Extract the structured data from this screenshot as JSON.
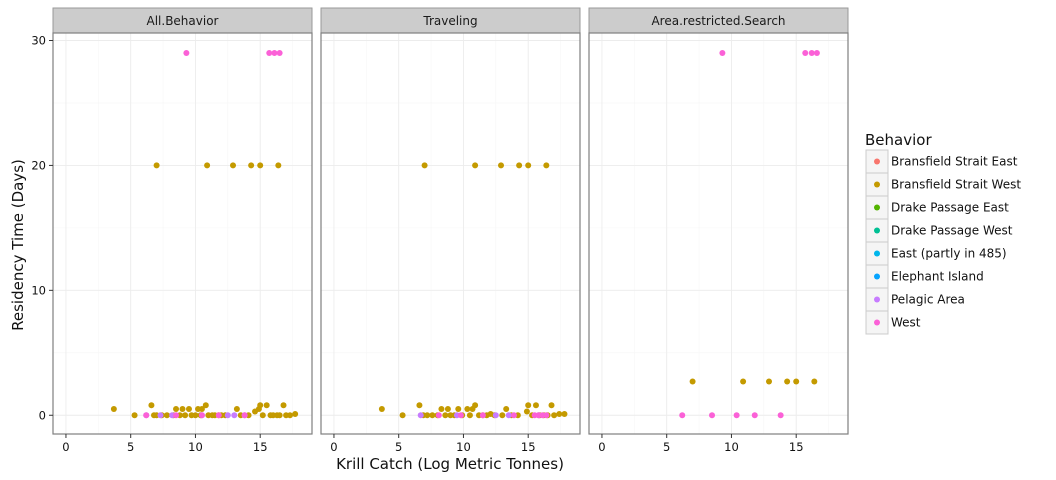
{
  "chart_data": {
    "type": "scatter",
    "xlabel": "Krill Catch (Log Metric Tonnes)",
    "ylabel": "Residency Time (Days)",
    "xlim": [
      -1,
      19
    ],
    "ylim": [
      -1.5,
      30.6
    ],
    "x_ticks": [
      "0",
      "5",
      "10",
      "15"
    ],
    "y_ticks": [
      "0",
      "10",
      "20",
      "30"
    ],
    "grid": true,
    "legend": {
      "title": "Behavior",
      "position": "right",
      "entries": [
        {
          "name": "Bransfield Strait East",
          "color": "#F8766D"
        },
        {
          "name": "Bransfield Strait West",
          "color": "#C49A00"
        },
        {
          "name": "Drake Passage East",
          "color": "#53B400"
        },
        {
          "name": "Drake Passage West",
          "color": "#00C094"
        },
        {
          "name": "East (partly in 485)",
          "color": "#00B6EB"
        },
        {
          "name": "Elephant Island",
          "color": "#06A4FF"
        },
        {
          "name": "Pelagic Area",
          "color": "#C77CFF"
        },
        {
          "name": "West",
          "color": "#FB61D7"
        }
      ]
    },
    "panels": [
      {
        "title": "All.Behavior",
        "series": [
          {
            "name": "Bransfield Strait West",
            "points": [
              [
                3.7,
                0.5
              ],
              [
                5.3,
                0
              ],
              [
                6.6,
                0.8
              ],
              [
                6.8,
                0
              ],
              [
                7.0,
                0
              ],
              [
                7.4,
                0
              ],
              [
                7.8,
                0
              ],
              [
                8.3,
                0
              ],
              [
                8.5,
                0.5
              ],
              [
                8.8,
                0
              ],
              [
                9.0,
                0.5
              ],
              [
                9.2,
                0
              ],
              [
                9.5,
                0.5
              ],
              [
                9.7,
                0
              ],
              [
                10.0,
                0
              ],
              [
                10.2,
                0.5
              ],
              [
                10.4,
                0
              ],
              [
                10.5,
                0.5
              ],
              [
                10.8,
                0.8
              ],
              [
                11.0,
                0
              ],
              [
                11.3,
                0
              ],
              [
                11.5,
                0
              ],
              [
                11.8,
                0
              ],
              [
                12.0,
                0
              ],
              [
                12.3,
                0
              ],
              [
                13.2,
                0.5
              ],
              [
                13.5,
                0
              ],
              [
                14.1,
                0
              ],
              [
                14.6,
                0.3
              ],
              [
                14.9,
                0.5
              ],
              [
                15.0,
                0.8
              ],
              [
                15.2,
                0
              ],
              [
                15.5,
                0.8
              ],
              [
                15.8,
                0
              ],
              [
                16.0,
                0
              ],
              [
                16.3,
                0
              ],
              [
                16.5,
                0
              ],
              [
                16.8,
                0.8
              ],
              [
                17.0,
                0
              ],
              [
                17.3,
                0
              ],
              [
                17.7,
                0.1
              ],
              [
                7.0,
                20
              ],
              [
                10.9,
                20
              ],
              [
                12.9,
                20
              ],
              [
                14.3,
                20
              ],
              [
                15.0,
                20
              ],
              [
                16.4,
                20
              ]
            ]
          },
          {
            "name": "Pelagic Area",
            "points": [
              [
                6.2,
                0
              ],
              [
                7.3,
                0
              ],
              [
                8.2,
                0
              ],
              [
                10.5,
                0
              ],
              [
                12.5,
                0
              ],
              [
                13.0,
                0
              ],
              [
                13.8,
                0
              ]
            ]
          },
          {
            "name": "West",
            "points": [
              [
                6.2,
                0
              ],
              [
                8.5,
                0
              ],
              [
                10.5,
                0
              ],
              [
                11.8,
                0
              ],
              [
                13.8,
                0
              ],
              [
                9.3,
                29
              ],
              [
                15.7,
                29
              ],
              [
                16.1,
                29
              ],
              [
                16.5,
                29
              ]
            ]
          }
        ]
      },
      {
        "title": "Traveling",
        "series": [
          {
            "name": "Bransfield Strait West",
            "points": [
              [
                3.7,
                0.5
              ],
              [
                5.3,
                0
              ],
              [
                6.6,
                0.8
              ],
              [
                6.9,
                0
              ],
              [
                7.2,
                0
              ],
              [
                7.6,
                0
              ],
              [
                8.0,
                0
              ],
              [
                8.3,
                0.5
              ],
              [
                8.6,
                0
              ],
              [
                8.8,
                0.5
              ],
              [
                9.0,
                0
              ],
              [
                9.3,
                0
              ],
              [
                9.6,
                0.5
              ],
              [
                9.9,
                0
              ],
              [
                10.3,
                0.5
              ],
              [
                10.5,
                0
              ],
              [
                10.7,
                0.5
              ],
              [
                10.9,
                0.8
              ],
              [
                11.2,
                0
              ],
              [
                11.5,
                0
              ],
              [
                11.8,
                0
              ],
              [
                12.1,
                0.1
              ],
              [
                12.4,
                0
              ],
              [
                13.0,
                0
              ],
              [
                13.3,
                0.5
              ],
              [
                13.7,
                0
              ],
              [
                14.2,
                0
              ],
              [
                14.9,
                0.3
              ],
              [
                15.0,
                0.8
              ],
              [
                15.3,
                0
              ],
              [
                15.6,
                0.8
              ],
              [
                15.9,
                0
              ],
              [
                16.2,
                0
              ],
              [
                16.5,
                0
              ],
              [
                16.8,
                0.8
              ],
              [
                17.0,
                0
              ],
              [
                17.4,
                0.1
              ],
              [
                17.8,
                0.1
              ],
              [
                7.0,
                20
              ],
              [
                10.9,
                20
              ],
              [
                12.9,
                20
              ],
              [
                14.3,
                20
              ],
              [
                15.0,
                20
              ],
              [
                16.4,
                20
              ]
            ]
          },
          {
            "name": "Pelagic Area",
            "points": [
              [
                6.7,
                0
              ],
              [
                9.5,
                0
              ],
              [
                12.5,
                0
              ],
              [
                13.5,
                0
              ],
              [
                15.8,
                0
              ]
            ]
          },
          {
            "name": "West",
            "points": [
              [
                8.1,
                0
              ],
              [
                9.8,
                0
              ],
              [
                11.5,
                0
              ],
              [
                13.9,
                0
              ],
              [
                15.5,
                0
              ],
              [
                15.8,
                0
              ],
              [
                16.1,
                0
              ],
              [
                16.4,
                0
              ]
            ]
          }
        ]
      },
      {
        "title": "Area.restricted.Search",
        "series": [
          {
            "name": "Bransfield Strait West",
            "points": [
              [
                7.0,
                2.7
              ],
              [
                10.9,
                2.7
              ],
              [
                12.9,
                2.7
              ],
              [
                14.3,
                2.7
              ],
              [
                15.0,
                2.7
              ],
              [
                16.4,
                2.7
              ]
            ]
          },
          {
            "name": "West",
            "points": [
              [
                6.2,
                0
              ],
              [
                8.5,
                0
              ],
              [
                10.4,
                0
              ],
              [
                11.8,
                0
              ],
              [
                13.8,
                0
              ],
              [
                9.3,
                29
              ],
              [
                15.7,
                29
              ],
              [
                16.2,
                29
              ],
              [
                16.6,
                29
              ]
            ]
          }
        ]
      }
    ]
  }
}
